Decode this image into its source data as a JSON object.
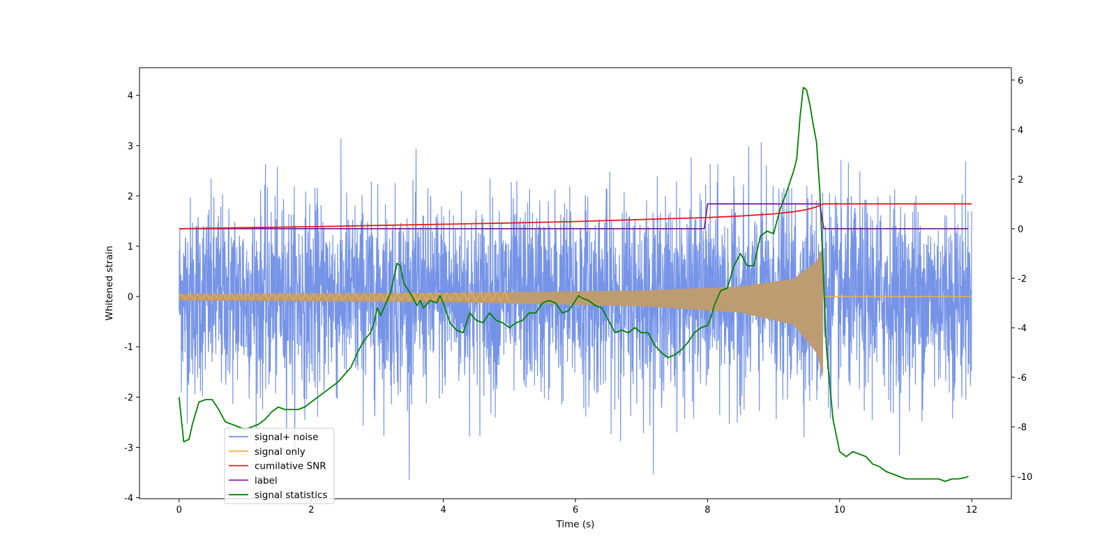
{
  "chart_data": {
    "type": "line",
    "title": "",
    "xlabel": "Time (s)",
    "ylabel": "Whitened strain",
    "y2label": "",
    "xlim": [
      -0.6,
      12.6
    ],
    "ylim": [
      -4.02,
      4.55
    ],
    "y2lim": [
      -10.9,
      6.5
    ],
    "xticks": [
      0,
      2,
      4,
      6,
      8,
      10,
      12
    ],
    "yticks": [
      -4,
      -3,
      -2,
      -1,
      0,
      1,
      2,
      3,
      4
    ],
    "y2ticks": [
      -10,
      -8,
      -6,
      -4,
      -2,
      0,
      2,
      4,
      6
    ],
    "legend_position": "lower-left",
    "series": [
      {
        "name": "signal+ noise",
        "axis": "left",
        "color": "#6f8ee6",
        "kind": "noise",
        "t_start": 0,
        "t_end": 12,
        "noise_sigma": 0.95,
        "signal_end": 9.75,
        "signal_amp_start": 0.05,
        "signal_amp_end": 0.7
      },
      {
        "name": "signal only",
        "axis": "left",
        "color": "#f5b041",
        "kind": "chirp",
        "t_start": 0,
        "t_end": 12,
        "signal_end": 9.75,
        "amp_points": [
          [
            0,
            0.05
          ],
          [
            4,
            0.07
          ],
          [
            7,
            0.12
          ],
          [
            8.5,
            0.2
          ],
          [
            9.3,
            0.35
          ],
          [
            9.65,
            0.7
          ],
          [
            9.75,
            1.0
          ]
        ],
        "fill_color": "#bd9c72"
      },
      {
        "name": "cumilative SNR",
        "axis": "right",
        "color": "#e31a1c",
        "kind": "line",
        "x": [
          0,
          1,
          2,
          3,
          4,
          5,
          6,
          7,
          8,
          8.5,
          9,
          9.3,
          9.5,
          9.65,
          9.75,
          10,
          11,
          12
        ],
        "values": [
          0,
          0.04,
          0.08,
          0.13,
          0.18,
          0.23,
          0.29,
          0.37,
          0.45,
          0.51,
          0.6,
          0.68,
          0.77,
          0.88,
          1.0,
          1.0,
          1.0,
          1.0
        ]
      },
      {
        "name": "label",
        "axis": "right",
        "color": "#7b1fa2",
        "kind": "line",
        "x": [
          0,
          7.95,
          8.0,
          9.7,
          9.76,
          11.95
        ],
        "values": [
          0,
          0,
          1,
          1,
          0,
          0
        ]
      },
      {
        "name": "signal statistics",
        "axis": "right",
        "color": "#008000",
        "kind": "line",
        "x": [
          0,
          0.07,
          0.15,
          0.2,
          0.3,
          0.4,
          0.5,
          0.6,
          0.7,
          0.8,
          0.9,
          1.0,
          1.1,
          1.2,
          1.3,
          1.4,
          1.5,
          1.6,
          1.7,
          1.8,
          1.9,
          2.0,
          2.1,
          2.2,
          2.3,
          2.4,
          2.5,
          2.6,
          2.7,
          2.8,
          2.9,
          2.95,
          3.0,
          3.05,
          3.1,
          3.2,
          3.25,
          3.3,
          3.35,
          3.4,
          3.5,
          3.6,
          3.65,
          3.7,
          3.8,
          3.9,
          3.95,
          4.0,
          4.1,
          4.2,
          4.3,
          4.4,
          4.5,
          4.6,
          4.7,
          4.8,
          4.9,
          5.0,
          5.1,
          5.2,
          5.3,
          5.4,
          5.5,
          5.6,
          5.7,
          5.8,
          5.9,
          6.0,
          6.05,
          6.1,
          6.2,
          6.3,
          6.4,
          6.5,
          6.6,
          6.7,
          6.8,
          6.9,
          7.0,
          7.1,
          7.2,
          7.3,
          7.4,
          7.5,
          7.6,
          7.7,
          7.8,
          7.9,
          8.0,
          8.05,
          8.1,
          8.2,
          8.3,
          8.4,
          8.5,
          8.6,
          8.7,
          8.8,
          8.9,
          9.0,
          9.1,
          9.2,
          9.3,
          9.35,
          9.4,
          9.45,
          9.5,
          9.55,
          9.6,
          9.65,
          9.7,
          9.8,
          9.9,
          10.0,
          10.1,
          10.2,
          10.3,
          10.4,
          10.5,
          10.6,
          10.7,
          10.8,
          10.9,
          11.0,
          11.1,
          11.2,
          11.3,
          11.4,
          11.5,
          11.6,
          11.7,
          11.8,
          11.9,
          11.95
        ],
        "values": [
          -6.8,
          -8.6,
          -8.5,
          -7.9,
          -7.0,
          -6.9,
          -6.9,
          -7.3,
          -7.8,
          -7.9,
          -8.0,
          -8.1,
          -8.0,
          -7.9,
          -7.7,
          -7.4,
          -7.2,
          -7.3,
          -7.3,
          -7.3,
          -7.2,
          -7.0,
          -6.8,
          -6.6,
          -6.4,
          -6.2,
          -5.9,
          -5.6,
          -5.0,
          -4.5,
          -4.2,
          -3.8,
          -3.2,
          -3.5,
          -3.2,
          -2.6,
          -2.0,
          -1.4,
          -1.5,
          -2.2,
          -2.6,
          -3.1,
          -2.9,
          -3.2,
          -2.9,
          -3.0,
          -2.7,
          -3.0,
          -3.8,
          -4.1,
          -4.2,
          -3.4,
          -3.7,
          -3.8,
          -3.4,
          -3.7,
          -3.8,
          -4.0,
          -3.8,
          -3.7,
          -3.4,
          -3.4,
          -3.0,
          -2.9,
          -3.0,
          -3.4,
          -3.3,
          -2.9,
          -2.7,
          -2.8,
          -2.9,
          -3.1,
          -3.2,
          -3.7,
          -4.2,
          -4.1,
          -4.2,
          -4.0,
          -4.2,
          -4.2,
          -4.7,
          -5.0,
          -5.2,
          -5.1,
          -4.9,
          -4.6,
          -4.2,
          -4.0,
          -3.9,
          -3.6,
          -3.1,
          -2.5,
          -2.4,
          -1.5,
          -1.0,
          -1.5,
          -1.5,
          -0.3,
          -0.1,
          -0.2,
          0.8,
          1.5,
          2.3,
          2.8,
          4.5,
          5.7,
          5.6,
          5.0,
          4.2,
          3.5,
          1.5,
          -4.8,
          -7.7,
          -9.0,
          -9.2,
          -9.0,
          -9.1,
          -9.2,
          -9.5,
          -9.6,
          -9.8,
          -9.9,
          -10.0,
          -10.1,
          -10.1,
          -10.1,
          -10.1,
          -10.1,
          -10.1,
          -10.2,
          -10.1,
          -10.1,
          -10.05,
          -10.0
        ]
      }
    ]
  }
}
